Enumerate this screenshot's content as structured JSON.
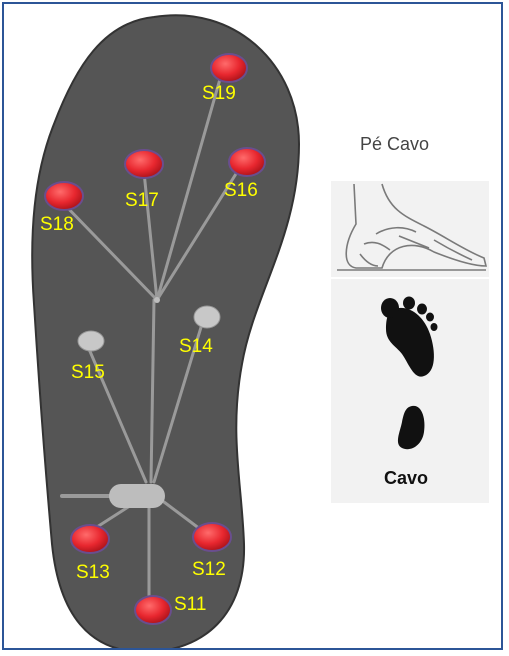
{
  "figure": {
    "foot_type_title": "Pé Cavo",
    "footprint_caption": "Cavo"
  },
  "sensors": [
    {
      "id": "S19",
      "label": "S19",
      "color": "#e8272f"
    },
    {
      "id": "S17",
      "label": "S17",
      "color": "#e8272f"
    },
    {
      "id": "S16",
      "label": "S16",
      "color": "#e8272f"
    },
    {
      "id": "S18",
      "label": "S18",
      "color": "#e8272f"
    },
    {
      "id": "S14",
      "label": "S14",
      "color": "#c8c8c8"
    },
    {
      "id": "S15",
      "label": "S15",
      "color": "#c8c8c8"
    },
    {
      "id": "S13",
      "label": "S13",
      "color": "#e8272f"
    },
    {
      "id": "S12",
      "label": "S12",
      "color": "#e8272f"
    },
    {
      "id": "S11",
      "label": "S11",
      "color": "#e8272f"
    }
  ],
  "colors": {
    "insole": "#555555",
    "label": "#ffff00",
    "active_sensor": "#e8272f",
    "inactive_sensor": "#c8c8c8",
    "frame_border": "#2c5597"
  }
}
